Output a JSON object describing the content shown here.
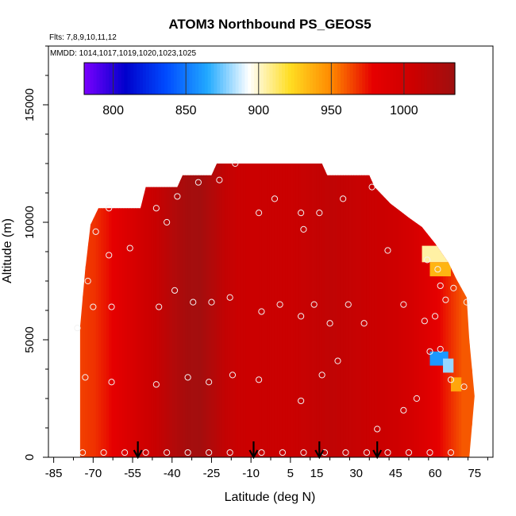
{
  "chart_data": {
    "type": "heatmap",
    "title": "ATOM3 Northbound PS_GEOS5",
    "subtitle_flights": "Flts: 7,8,9,10,11,12",
    "subtitle_dates": "MMDD: 1014,1017,1019,1020,1023,1025",
    "xlabel": "Latitude (deg N)",
    "ylabel": "Altitude (m)",
    "xlim": [
      -87,
      82
    ],
    "ylim": [
      0,
      17500
    ],
    "x_ticks": [
      -85,
      -70,
      -55,
      -40,
      -25,
      -10,
      5,
      15,
      30,
      45,
      60,
      75
    ],
    "x_tick_labels": [
      "-85",
      "-70",
      "-55",
      "-40",
      "-25",
      "-10",
      "5",
      "15",
      "30",
      "45",
      "60",
      "75"
    ],
    "y_ticks": [
      0,
      5000,
      10000,
      15000
    ],
    "y_tick_labels": [
      "0",
      "5000",
      "10000",
      "15000"
    ],
    "colorbar": {
      "range": [
        780,
        1035
      ],
      "ticks": [
        800,
        850,
        900,
        950,
        1000
      ],
      "tick_labels": [
        "800",
        "850",
        "900",
        "950",
        "1000"
      ],
      "colors": [
        "#7b00ff",
        "#0000cc",
        "#004cff",
        "#22aaff",
        "#ffffff",
        "#ffdd22",
        "#ff8800",
        "#e60000",
        "#cc0000",
        "#9e1010"
      ]
    },
    "altitude_ceiling": [
      {
        "lat": -73,
        "alt": 8000
      },
      {
        "lat": -71,
        "alt": 9900
      },
      {
        "lat": -68,
        "alt": 10600
      },
      {
        "lat": -52,
        "alt": 10600
      },
      {
        "lat": -50,
        "alt": 11500
      },
      {
        "lat": -38,
        "alt": 11500
      },
      {
        "lat": -36,
        "alt": 12000
      },
      {
        "lat": -25,
        "alt": 12000
      },
      {
        "lat": -23,
        "alt": 12500
      },
      {
        "lat": 17,
        "alt": 12500
      },
      {
        "lat": 19,
        "alt": 12000
      },
      {
        "lat": 35,
        "alt": 12000
      },
      {
        "lat": 37,
        "alt": 11500
      },
      {
        "lat": 43,
        "alt": 10800
      },
      {
        "lat": 50,
        "alt": 10200
      },
      {
        "lat": 55,
        "alt": 9800
      },
      {
        "lat": 60,
        "alt": 9100
      },
      {
        "lat": 65,
        "alt": 8300
      },
      {
        "lat": 68,
        "alt": 7600
      },
      {
        "lat": 72,
        "alt": 6800
      },
      {
        "lat": 73,
        "alt": 5000
      },
      {
        "lat": 75,
        "alt": 2600
      },
      {
        "lat": 73,
        "alt": 0
      }
    ],
    "latitude_columns": [
      {
        "lat": -75,
        "value": 965
      },
      {
        "lat": -70,
        "value": 968
      },
      {
        "lat": -65,
        "value": 975
      },
      {
        "lat": -60,
        "value": 985
      },
      {
        "lat": -55,
        "value": 995
      },
      {
        "lat": -50,
        "value": 1005
      },
      {
        "lat": -45,
        "value": 1012
      },
      {
        "lat": -40,
        "value": 1022
      },
      {
        "lat": -35,
        "value": 1030
      },
      {
        "lat": -30,
        "value": 1032
      },
      {
        "lat": -25,
        "value": 1022
      },
      {
        "lat": -20,
        "value": 1012
      },
      {
        "lat": -15,
        "value": 1008
      },
      {
        "lat": -10,
        "value": 1007
      },
      {
        "lat": -5,
        "value": 1008
      },
      {
        "lat": 0,
        "value": 1008
      },
      {
        "lat": 5,
        "value": 1008
      },
      {
        "lat": 10,
        "value": 1010
      },
      {
        "lat": 15,
        "value": 1012
      },
      {
        "lat": 20,
        "value": 1014
      },
      {
        "lat": 25,
        "value": 1012
      },
      {
        "lat": 30,
        "value": 1010
      },
      {
        "lat": 35,
        "value": 1008
      },
      {
        "lat": 40,
        "value": 1007
      },
      {
        "lat": 45,
        "value": 1004
      },
      {
        "lat": 50,
        "value": 998
      },
      {
        "lat": 55,
        "value": 990
      },
      {
        "lat": 60,
        "value": 980
      },
      {
        "lat": 65,
        "value": 970
      },
      {
        "lat": 70,
        "value": 960
      }
    ],
    "anomalies": [
      {
        "lat_min": 58,
        "lat_max": 65,
        "alt_min": 3900,
        "alt_max": 4500,
        "value": 860
      },
      {
        "lat_min": 63,
        "lat_max": 67,
        "alt_min": 3600,
        "alt_max": 4200,
        "value": 880
      },
      {
        "lat_min": 66,
        "lat_max": 70,
        "alt_min": 2800,
        "alt_max": 3400,
        "value": 940
      },
      {
        "lat_min": 55,
        "lat_max": 66,
        "alt_min": 8300,
        "alt_max": 9000,
        "value": 905
      },
      {
        "lat_min": 58,
        "lat_max": 66,
        "alt_min": 7700,
        "alt_max": 8300,
        "value": 935
      }
    ],
    "sample_points": [
      [
        -74,
        200
      ],
      [
        -66,
        200
      ],
      [
        -58,
        200
      ],
      [
        -50,
        200
      ],
      [
        -42,
        200
      ],
      [
        -34,
        200
      ],
      [
        -26,
        200
      ],
      [
        -18,
        200
      ],
      [
        -6,
        200
      ],
      [
        2,
        200
      ],
      [
        10,
        200
      ],
      [
        18,
        200
      ],
      [
        26,
        200
      ],
      [
        34,
        200
      ],
      [
        42,
        200
      ],
      [
        50,
        200
      ],
      [
        58,
        200
      ],
      [
        66,
        200
      ],
      [
        -73,
        3400
      ],
      [
        -63,
        3200
      ],
      [
        -46,
        3100
      ],
      [
        -34,
        3400
      ],
      [
        -26,
        3200
      ],
      [
        -17,
        3500
      ],
      [
        -7,
        3300
      ],
      [
        9,
        2400
      ],
      [
        17,
        3500
      ],
      [
        23,
        4100
      ],
      [
        38,
        1200
      ],
      [
        48,
        2000
      ],
      [
        53,
        2500
      ],
      [
        58,
        4500
      ],
      [
        62,
        4600
      ],
      [
        66,
        3300
      ],
      [
        71,
        3000
      ],
      [
        -76,
        5500
      ],
      [
        -70,
        6400
      ],
      [
        -63,
        6400
      ],
      [
        -45,
        6400
      ],
      [
        -39,
        7100
      ],
      [
        -32,
        6600
      ],
      [
        -25,
        6600
      ],
      [
        -18,
        6800
      ],
      [
        -6,
        6200
      ],
      [
        1,
        6500
      ],
      [
        9,
        6000
      ],
      [
        14,
        6500
      ],
      [
        20,
        5700
      ],
      [
        27,
        6500
      ],
      [
        33,
        5700
      ],
      [
        48,
        6500
      ],
      [
        56,
        5800
      ],
      [
        60,
        6000
      ],
      [
        64,
        6700
      ],
      [
        72,
        6600
      ],
      [
        67,
        7200
      ],
      [
        62,
        7300
      ],
      [
        -72,
        7500
      ],
      [
        -64,
        8600
      ],
      [
        -56,
        8900
      ],
      [
        -69,
        9600
      ],
      [
        -42,
        10000
      ],
      [
        -46,
        10600
      ],
      [
        -64,
        10600
      ],
      [
        -38,
        11100
      ],
      [
        -30,
        11700
      ],
      [
        -22,
        11800
      ],
      [
        -7,
        10400
      ],
      [
        -1,
        11000
      ],
      [
        9,
        10400
      ],
      [
        16,
        10400
      ],
      [
        10,
        9700
      ],
      [
        25,
        11000
      ],
      [
        36,
        11500
      ],
      [
        42,
        8800
      ],
      [
        57,
        8400
      ],
      [
        61,
        8000
      ],
      [
        -16,
        12500
      ]
    ],
    "flight_markers": [
      -53,
      -9,
      16,
      38
    ]
  }
}
